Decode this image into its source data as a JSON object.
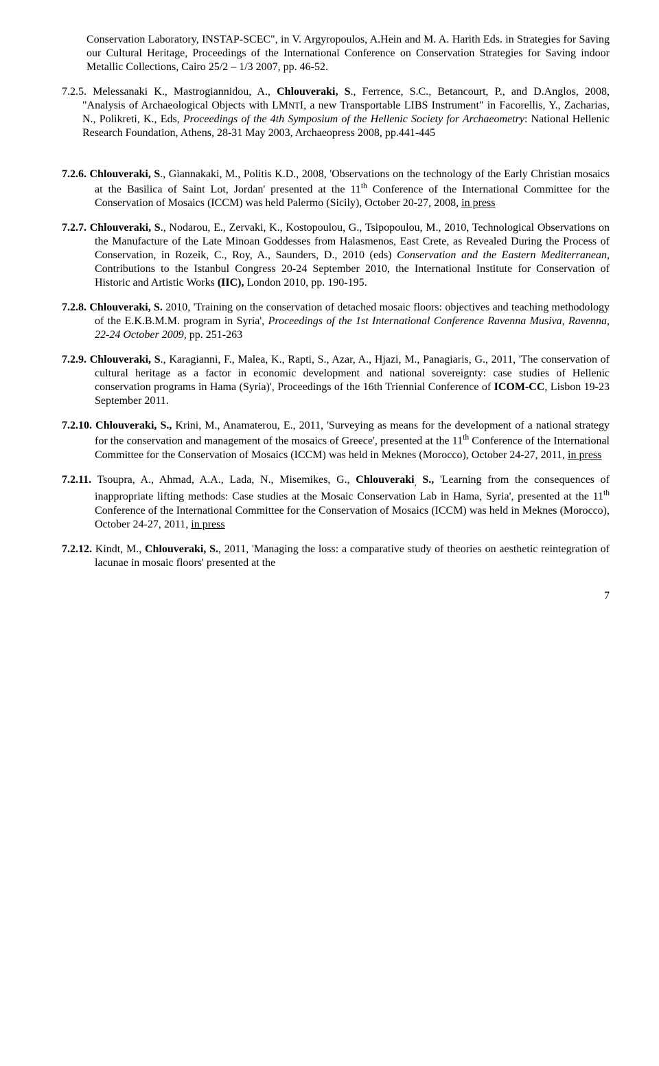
{
  "entries": {
    "e0": "Conservation Laboratory, INSTAP-SCEC\", in V. Argyropoulos, A.Hein and M. A. Harith Eds. in Strategies for Saving our Cultural Heritage, Proceedings of the International Conference on Conservation Strategies for Saving indoor Metallic Collections, Cairo 25/2 – 1/3 2007, pp. 46-52.",
    "e725_a": "7.2.5. Melessanaki K., Mastrogiannidou, A., ",
    "e725_b": "Chlouveraki, S",
    "e725_c": "., Ferrence, S.C., Betancourt, P., and D.Anglos, 2008, \"Analysis of Archaeological Objects with LM",
    "e725_nt": "NT",
    "e725_d": "I, a new Transportable LIBS Instrument\" in Facorellis, Y., Zacharias, N., Polikreti, K., Eds, ",
    "e725_e": "Proceedings of the 4th Symposium of the Hellenic Society for Archaeometry",
    "e725_f": ": National Hellenic Research Foundation, Athens, 28-31 May 2003, Archaeopress 2008, pp.441-445",
    "e726_a": "7.2.6. Chlouveraki, S",
    "e726_b": "., Giannakaki, M., Politis K.D., 2008, 'Observations on the technology of the Early Christian mosaics at the Basilica of Saint Lot, Jordan' presented at the 11",
    "e726_c": " Conference of the International Committee for the Conservation of Mosaics (ICCM) was held Palermo (Sicily), October 20-27, 2008, ",
    "e726_d": "in press",
    "e727_a": "7.2.7. Chlouveraki, S",
    "e727_b": "., Nodarou, E., Zervaki, K., Kostopoulou, G., Tsipopoulou, M., 2010, Technological Observations on the Manufacture of the Late Minoan Goddesses from Halasmenos, East Crete, as Revealed During the Process of Conservation, in Rozeik, C., Roy, A., Saunders, D., 2010 (eds) ",
    "e727_c": "Conservation and the Eastern Mediterranean,",
    "e727_d": " Contributions to the Istanbul Congress 20-24 September 2010, the International Institute for Conservation of Historic and Artistic Works ",
    "e727_e": "(IIC),",
    "e727_f": " London 2010, pp. 190-195.",
    "e728_a": "7.2.8.  Chlouveraki, S.",
    "e728_b": " 2010, 'Training on the conservation of detached mosaic floors: objectives and teaching methodology of the E.K.B.M.M. program in Syria', ",
    "e728_c": "Proceedings of the 1st International Conference Ravenna Musiva, Ravenna, 22-24 October 2009,",
    "e728_d": " pp. 251-263",
    "e729_a": "7.2.9. Chlouveraki, S",
    "e729_b": "., Karagianni, F., Malea, K., Rapti, S., Azar, A., Hjazi, M., Panagiaris, G., 2011, 'The conservation of cultural heritage as a factor in economic development and national sovereignty: case studies of Hellenic conservation programs in Hama (Syria)', Proceedings of the 16th Triennial Conference of ",
    "e729_c": "ICOM-CC",
    "e729_d": ", Lisbon 19-23 September 2011.",
    "e7210_a": "7.2.10.  Chlouveraki, S.,",
    "e7210_b": " Krini, M., Anamaterou, E., 2011, 'Surveying as means for the development of a national strategy for the conservation and management of the mosaics of Greece', presented at the 11",
    "e7210_c": " Conference of the International Committee for the Conservation of Mosaics (ICCM) was held in Meknes (Morocco), October 24-27, 2011, ",
    "e7210_d": "in press",
    "e7211_a": "7.2.11.",
    "e7211_b": " Tsoupra, A., Ahmad, A.A., Lada, N., Misemikes, G., ",
    "e7211_c": "Chlouveraki",
    "e7211_d": " S.,",
    "e7211_e": "   'Learning from the consequences of inappropriate lifting methods: Case studies at the Mosaic Conservation Lab in Hama, Syria', presented at the 11",
    "e7211_f": " Conference of the International Committee for the Conservation of Mosaics (ICCM) was held in Meknes (Morocco), October 24-27, 2011, ",
    "e7211_g": "in press",
    "e7212_a": "7.2.12.",
    "e7212_b": " Kindt, M., ",
    "e7212_c": "Chlouveraki, S.",
    "e7212_d": ", 2011, 'Managing the loss: a comparative study of theories on aesthetic reintegration of lacunae in mosaic floors' presented at the",
    "th": "th",
    "comma": ",",
    "pageNumber": "7"
  }
}
